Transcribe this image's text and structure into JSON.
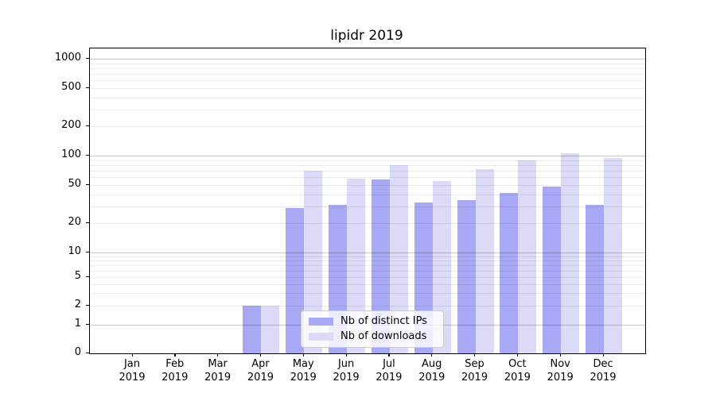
{
  "chart_data": {
    "type": "bar",
    "title": "lipidr 2019",
    "year_label": "2019",
    "categories": [
      "Jan",
      "Feb",
      "Mar",
      "Apr",
      "May",
      "Jun",
      "Jul",
      "Aug",
      "Sep",
      "Oct",
      "Nov",
      "Dec"
    ],
    "series": [
      {
        "name": "Nb of distinct IPs",
        "color": "#a8a8f4",
        "values": [
          0,
          0,
          0,
          2,
          29,
          31,
          57,
          33,
          35,
          41,
          48,
          31
        ]
      },
      {
        "name": "Nb of downloads",
        "color": "#dbdbf8",
        "values": [
          0,
          0,
          0,
          2,
          70,
          58,
          80,
          55,
          73,
          90,
          105,
          94
        ]
      }
    ],
    "yticks": [
      0,
      1,
      2,
      5,
      10,
      20,
      50,
      100,
      200,
      500,
      1000
    ],
    "y_minor_ticks": [
      3,
      4,
      6,
      7,
      8,
      9,
      30,
      40,
      60,
      70,
      80,
      90,
      300,
      400,
      600,
      700,
      800,
      900
    ],
    "scale": "symlog",
    "ylim": [
      0,
      1280
    ],
    "grid": true,
    "legend_position": "lower center"
  },
  "colors": {
    "bar_ips": "#a8a8f4",
    "bar_downloads": "#dbdbf8",
    "axis": "#000000",
    "major_grid_rgba": "rgba(0,0,0,0.22)",
    "minor_grid_rgba": "rgba(0,0,0,0.08)"
  }
}
